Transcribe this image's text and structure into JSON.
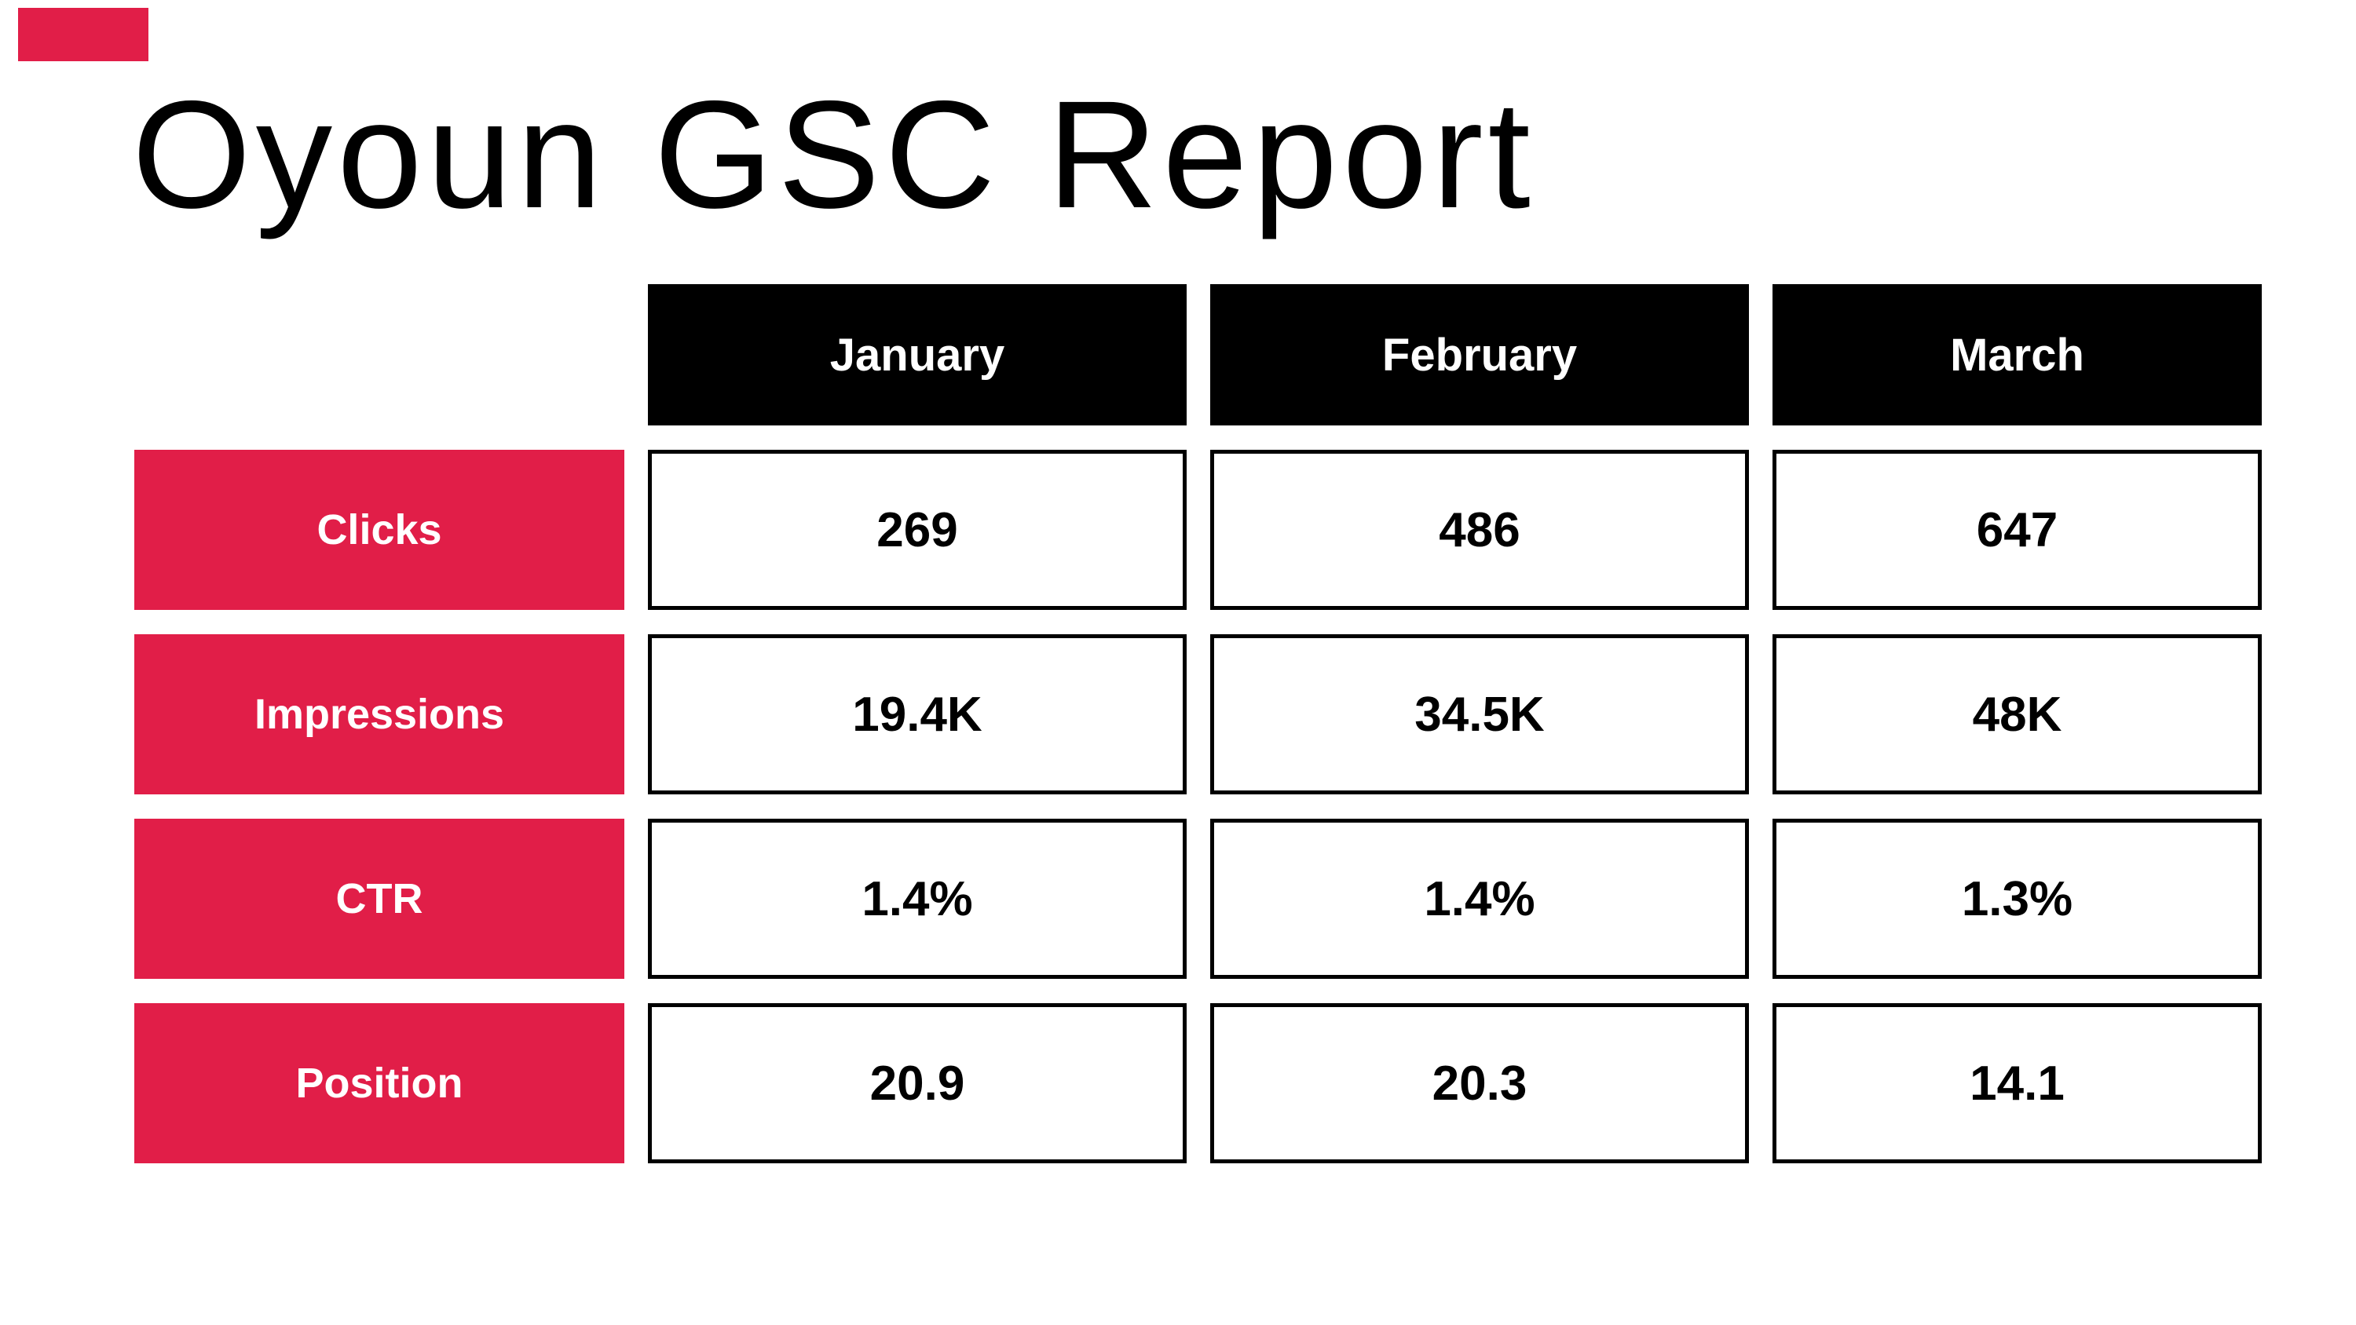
{
  "page": {
    "title": "Oyoun GSC Report",
    "background": "#ffffff"
  },
  "accent_bar": {
    "color": "#e11e48"
  },
  "colors": {
    "month_header_bg": "#000000",
    "month_header_text": "#ffffff",
    "metric_label_bg": "#e11e48",
    "metric_label_text": "#ffffff",
    "value_cell_bg": "#ffffff",
    "value_cell_border": "#000000",
    "value_cell_text": "#000000"
  },
  "table": {
    "column_headers": [
      "January",
      "February",
      "March"
    ],
    "rows": [
      {
        "label": "Clicks",
        "values": [
          "269",
          "486",
          "647"
        ]
      },
      {
        "label": "Impressions",
        "values": [
          "19.4K",
          "34.5K",
          "48K"
        ]
      },
      {
        "label": "CTR",
        "values": [
          "1.4%",
          "1.4%",
          "1.3%"
        ]
      },
      {
        "label": "Position",
        "values": [
          "20.9",
          "20.3",
          "14.1"
        ]
      }
    ]
  },
  "chart_data": {
    "type": "table",
    "title": "Oyoun GSC Report",
    "categories": [
      "January",
      "February",
      "March"
    ],
    "series": [
      {
        "name": "Clicks",
        "values": [
          269,
          486,
          647
        ]
      },
      {
        "name": "Impressions",
        "values": [
          "19.4K",
          "34.5K",
          "48K"
        ]
      },
      {
        "name": "CTR",
        "values": [
          "1.4%",
          "1.4%",
          "1.3%"
        ]
      },
      {
        "name": "Position",
        "values": [
          20.9,
          20.3,
          14.1
        ]
      }
    ],
    "layout": "metrics as rows, months as columns, no gridlines, separated boxed cells"
  }
}
